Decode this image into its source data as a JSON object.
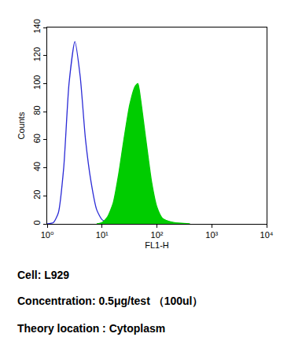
{
  "chart_data": {
    "type": "line",
    "x_label": "FL1-H",
    "y_label": "Counts",
    "log": "x",
    "grid": false,
    "xlim": [
      1,
      10000
    ],
    "xticks": [
      {
        "value": 1,
        "label": "10⁰"
      },
      {
        "value": 10,
        "label": "10¹"
      },
      {
        "value": 100,
        "label": "10²"
      },
      {
        "value": 1000,
        "label": "10³"
      },
      {
        "value": 10000,
        "label": "10⁴"
      }
    ],
    "ylim": [
      0,
      140
    ],
    "yticks": [
      0,
      20,
      40,
      60,
      80,
      100,
      120,
      140
    ],
    "series": [
      {
        "type": "line",
        "color": "#2b2bd6",
        "x": [
          1,
          1.3,
          1.6,
          2,
          2.5,
          3.2,
          4,
          5,
          6.3,
          8,
          10,
          12.6,
          16
        ],
        "values": [
          0,
          1,
          8,
          40,
          100,
          130,
          105,
          60,
          30,
          10,
          3,
          1,
          0
        ]
      },
      {
        "type": "area",
        "color": "#00cc00",
        "x": [
          8,
          10,
          12.6,
          16,
          20,
          25,
          32,
          40,
          45,
          50,
          63,
          80,
          100,
          126,
          200,
          400
        ],
        "values": [
          0,
          1,
          5,
          15,
          35,
          60,
          85,
          98,
          100,
          90,
          60,
          30,
          12,
          4,
          1,
          0
        ]
      }
    ],
    "annotations": [
      "Cell: L929",
      "Concentration: 0.5μg/test （100ul）",
      "Theory location : Cytoplasm"
    ]
  }
}
